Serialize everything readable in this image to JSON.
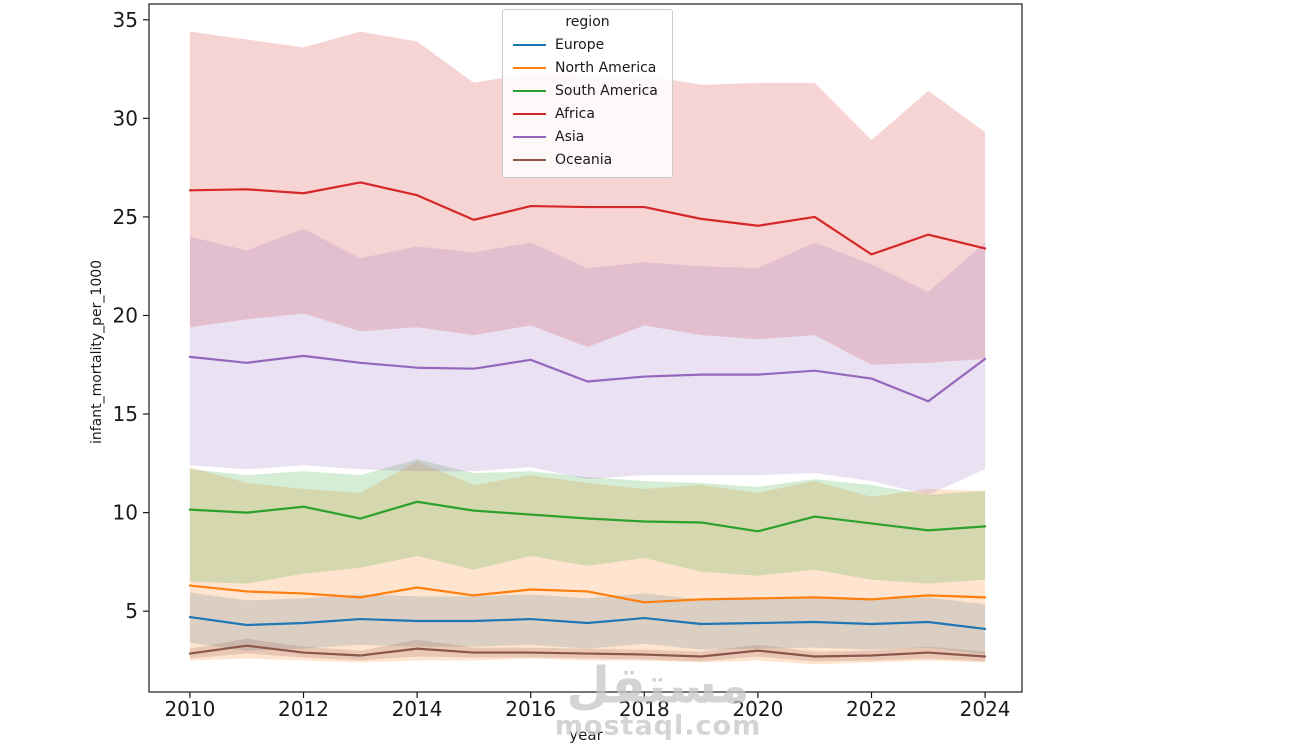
{
  "watermark": {
    "arabic": "مستقل",
    "latin": "mostaql.com"
  },
  "chart_data": {
    "type": "line",
    "title": "",
    "xlabel": "year",
    "ylabel": "infant_mortality_per_1000",
    "legend_title": "region",
    "legend_position": "upper center",
    "grid": false,
    "band_alpha": 0.2,
    "x": [
      2010,
      2011,
      2012,
      2013,
      2014,
      2015,
      2016,
      2017,
      2018,
      2019,
      2020,
      2021,
      2022,
      2023,
      2024
    ],
    "xticks": [
      2010,
      2012,
      2014,
      2016,
      2018,
      2020,
      2022,
      2024
    ],
    "yticks": [
      5,
      10,
      15,
      20,
      25,
      30,
      35
    ],
    "xlim": [
      2009.28,
      2024.65
    ],
    "ylim": [
      0.9,
      35.8
    ],
    "tick_color": "#1a1a1a",
    "spine_color": "#1a1a1a",
    "series": [
      {
        "name": "Europe",
        "color": "#1f77b4",
        "values": [
          4.7,
          4.3,
          4.4,
          4.6,
          4.5,
          4.5,
          4.6,
          4.4,
          4.65,
          4.35,
          4.4,
          4.45,
          4.35,
          4.45,
          4.1
        ],
        "band_upper": [
          5.95,
          5.55,
          5.65,
          5.85,
          5.75,
          5.75,
          5.85,
          5.65,
          5.9,
          5.6,
          5.65,
          5.7,
          5.6,
          5.7,
          5.35
        ],
        "band_lower": [
          3.4,
          3.0,
          3.1,
          3.3,
          3.2,
          3.2,
          3.3,
          3.1,
          3.35,
          3.05,
          3.1,
          3.15,
          3.05,
          3.15,
          2.8
        ]
      },
      {
        "name": "North America",
        "color": "#ff7f0e",
        "values": [
          6.3,
          6.0,
          5.9,
          5.7,
          6.2,
          5.8,
          6.1,
          6.0,
          5.45,
          5.6,
          5.65,
          5.7,
          5.6,
          5.8,
          5.7
        ],
        "band_upper": [
          12.3,
          11.5,
          11.2,
          11.0,
          12.6,
          11.4,
          11.9,
          11.5,
          11.2,
          11.4,
          11.0,
          11.6,
          10.8,
          11.2,
          11.1
        ],
        "band_lower": [
          2.5,
          2.6,
          2.5,
          2.4,
          2.5,
          2.5,
          2.6,
          2.5,
          2.5,
          2.4,
          2.5,
          2.3,
          2.4,
          2.5,
          2.4
        ]
      },
      {
        "name": "South America",
        "color": "#2ca02c",
        "values": [
          10.15,
          10.0,
          10.3,
          9.7,
          10.55,
          10.1,
          9.9,
          9.7,
          9.55,
          9.5,
          9.05,
          9.8,
          9.45,
          9.1,
          9.3
        ],
        "band_upper": [
          12.2,
          11.9,
          12.1,
          11.9,
          12.7,
          12.0,
          12.1,
          11.8,
          11.6,
          11.5,
          11.3,
          11.7,
          11.4,
          10.9,
          11.1
        ],
        "band_lower": [
          6.5,
          6.4,
          6.9,
          7.2,
          7.8,
          7.1,
          7.8,
          7.3,
          7.7,
          7.0,
          6.8,
          7.1,
          6.6,
          6.4,
          6.6
        ]
      },
      {
        "name": "Africa",
        "color": "#d62728",
        "values": [
          26.35,
          26.4,
          26.2,
          26.75,
          26.1,
          24.85,
          25.55,
          25.5,
          25.5,
          24.9,
          24.55,
          25.0,
          23.1,
          24.1,
          23.4
        ],
        "band_upper": [
          34.4,
          34.0,
          33.6,
          34.4,
          33.9,
          31.8,
          32.3,
          32.2,
          32.2,
          31.7,
          31.8,
          31.8,
          28.9,
          31.4,
          29.3
        ],
        "band_lower": [
          19.4,
          19.8,
          20.1,
          19.2,
          19.4,
          19.0,
          19.5,
          18.4,
          19.5,
          19.0,
          18.8,
          19.0,
          17.5,
          17.6,
          17.8
        ]
      },
      {
        "name": "Asia",
        "color": "#9467bd",
        "values": [
          17.9,
          17.6,
          17.95,
          17.6,
          17.35,
          17.3,
          17.75,
          16.65,
          16.9,
          17.0,
          17.0,
          17.2,
          16.8,
          15.65,
          17.8
        ],
        "band_upper": [
          24.0,
          23.3,
          24.4,
          22.9,
          23.5,
          23.2,
          23.7,
          22.4,
          22.7,
          22.5,
          22.4,
          23.7,
          22.6,
          21.2,
          23.7
        ],
        "band_lower": [
          12.4,
          12.2,
          12.4,
          12.2,
          12.1,
          12.1,
          12.3,
          11.7,
          11.9,
          11.9,
          11.9,
          12.0,
          11.6,
          10.9,
          12.2
        ]
      },
      {
        "name": "Oceania",
        "color": "#8c564b",
        "values": [
          2.85,
          3.25,
          2.9,
          2.75,
          3.1,
          2.9,
          2.9,
          2.85,
          2.8,
          2.7,
          3.0,
          2.7,
          2.75,
          2.9,
          2.7
        ],
        "band_upper": [
          3.1,
          3.6,
          3.2,
          3.0,
          3.55,
          3.15,
          3.15,
          3.1,
          3.05,
          2.95,
          3.3,
          2.95,
          3.0,
          3.2,
          2.95
        ],
        "band_lower": [
          2.6,
          2.85,
          2.65,
          2.5,
          2.7,
          2.65,
          2.65,
          2.6,
          2.55,
          2.45,
          2.7,
          2.45,
          2.5,
          2.6,
          2.45
        ]
      }
    ]
  }
}
